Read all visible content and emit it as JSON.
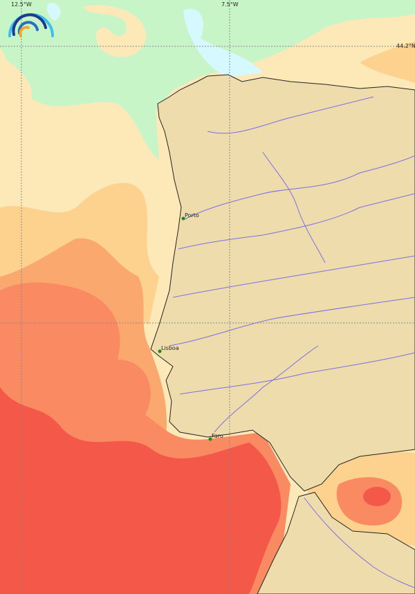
{
  "grid_labels": {
    "lon1": "12.5°W",
    "lon2": "7.5°W",
    "lat1": "44.2°N"
  },
  "cities": [
    {
      "name": "Porto"
    },
    {
      "name": "Lisboa"
    },
    {
      "name": "Faro"
    }
  ],
  "colors": {
    "land": "#eedcac",
    "river": "#7b6ee6",
    "sea_levels": [
      "#d6f8ff",
      "#c8f5c8",
      "#fde8b8",
      "#fdd28f",
      "#fba86e",
      "#f98a62",
      "#f45848"
    ]
  },
  "logo": {
    "icon": "rainbow-arcs-logo"
  }
}
